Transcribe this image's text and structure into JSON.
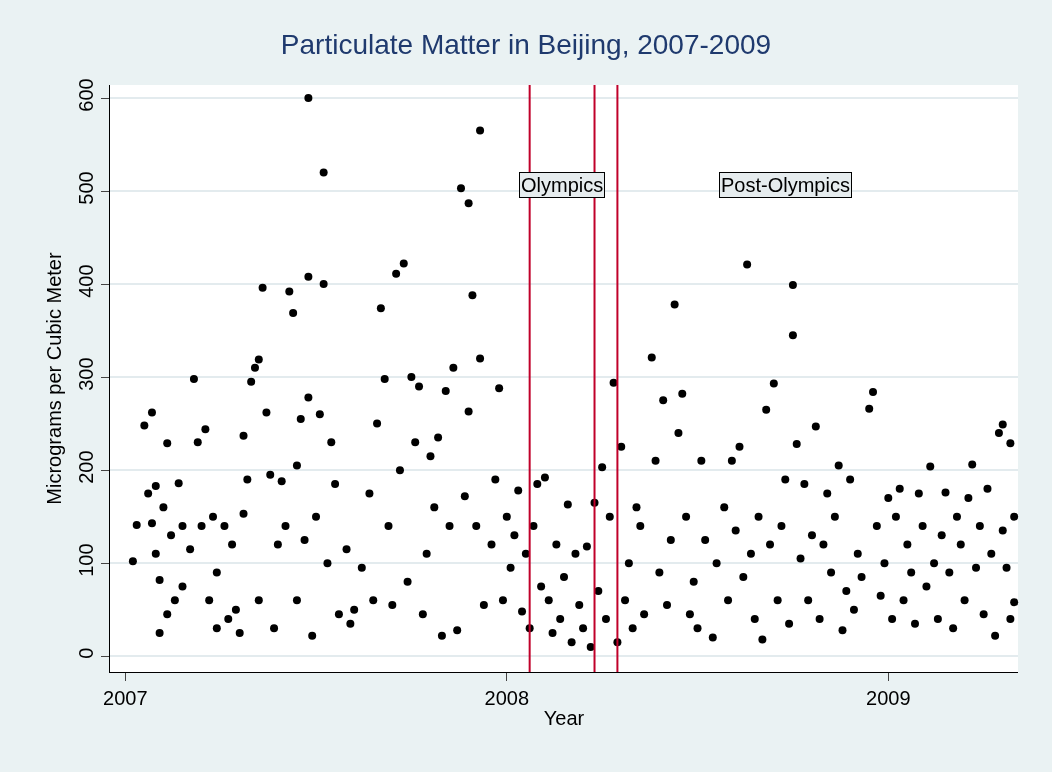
{
  "chart_data": {
    "type": "scatter",
    "title": "Particulate Matter in Beijing, 2007-2009",
    "xlabel": "Year",
    "ylabel": "Micrograms per Cubic Meter",
    "x": [
      2007.02,
      2007.03,
      2007.05,
      2007.06,
      2007.07,
      2007.07,
      2007.08,
      2007.08,
      2007.09,
      2007.09,
      2007.1,
      2007.11,
      2007.11,
      2007.12,
      2007.13,
      2007.14,
      2007.15,
      2007.15,
      2007.17,
      2007.18,
      2007.19,
      2007.2,
      2007.21,
      2007.22,
      2007.23,
      2007.24,
      2007.24,
      2007.26,
      2007.27,
      2007.28,
      2007.29,
      2007.3,
      2007.31,
      2007.31,
      2007.32,
      2007.33,
      2007.34,
      2007.35,
      2007.35,
      2007.36,
      2007.37,
      2007.38,
      2007.39,
      2007.4,
      2007.41,
      2007.42,
      2007.43,
      2007.44,
      2007.45,
      2007.45,
      2007.46,
      2007.47,
      2007.48,
      2007.48,
      2007.48,
      2007.49,
      2007.5,
      2007.51,
      2007.52,
      2007.52,
      2007.53,
      2007.54,
      2007.55,
      2007.56,
      2007.58,
      2007.59,
      2007.6,
      2007.62,
      2007.64,
      2007.65,
      2007.66,
      2007.67,
      2007.68,
      2007.69,
      2007.7,
      2007.71,
      2007.72,
      2007.73,
      2007.74,
      2007.75,
      2007.76,
      2007.77,
      2007.78,
      2007.79,
      2007.8,
      2007.81,
      2007.82,
      2007.83,
      2007.84,
      2007.85,
      2007.86,
      2007.87,
      2007.88,
      2007.89,
      2007.9,
      2007.9,
      2007.91,
      2007.92,
      2007.93,
      2007.93,
      2007.94,
      2007.96,
      2007.97,
      2007.98,
      2007.99,
      2008.0,
      2008.01,
      2008.02,
      2008.03,
      2008.04,
      2008.05,
      2008.06,
      2008.07,
      2008.08,
      2008.09,
      2008.1,
      2008.11,
      2008.12,
      2008.13,
      2008.14,
      2008.15,
      2008.16,
      2008.17,
      2008.18,
      2008.19,
      2008.2,
      2008.21,
      2008.22,
      2008.23,
      2008.24,
      2008.25,
      2008.26,
      2008.27,
      2008.28,
      2008.29,
      2008.3,
      2008.31,
      2008.32,
      2008.33,
      2008.34,
      2008.35,
      2008.36,
      2008.38,
      2008.39,
      2008.4,
      2008.41,
      2008.42,
      2008.43,
      2008.44,
      2008.45,
      2008.46,
      2008.47,
      2008.48,
      2008.49,
      2008.5,
      2008.51,
      2008.52,
      2008.54,
      2008.55,
      2008.57,
      2008.58,
      2008.59,
      2008.6,
      2008.61,
      2008.62,
      2008.63,
      2008.64,
      2008.65,
      2008.66,
      2008.67,
      2008.68,
      2008.69,
      2008.7,
      2008.71,
      2008.72,
      2008.73,
      2008.74,
      2008.75,
      2008.75,
      2008.76,
      2008.77,
      2008.78,
      2008.79,
      2008.8,
      2008.81,
      2008.82,
      2008.83,
      2008.84,
      2008.85,
      2008.86,
      2008.87,
      2008.88,
      2008.89,
      2008.9,
      2008.91,
      2008.92,
      2008.93,
      2008.95,
      2008.96,
      2008.97,
      2008.98,
      2008.99,
      2009.0,
      2009.01,
      2009.02,
      2009.03,
      2009.04,
      2009.05,
      2009.06,
      2009.07,
      2009.08,
      2009.09,
      2009.1,
      2009.11,
      2009.12,
      2009.13,
      2009.14,
      2009.15,
      2009.16,
      2009.17,
      2009.18,
      2009.19,
      2009.2,
      2009.21,
      2009.22,
      2009.23,
      2009.24,
      2009.25,
      2009.26,
      2009.27,
      2009.28,
      2009.29,
      2009.3,
      2009.3,
      2009.31,
      2009.32,
      2009.32,
      2009.33,
      2009.33
    ],
    "values": [
      102,
      141,
      248,
      175,
      262,
      143,
      183,
      110,
      25,
      82,
      160,
      229,
      45,
      130,
      60,
      186,
      75,
      140,
      115,
      298,
      230,
      140,
      244,
      60,
      150,
      30,
      90,
      140,
      40,
      120,
      50,
      25,
      153,
      237,
      190,
      295,
      310,
      319,
      60,
      396,
      262,
      195,
      30,
      120,
      188,
      140,
      392,
      369,
      60,
      205,
      255,
      125,
      600,
      408,
      278,
      22,
      150,
      260,
      400,
      520,
      100,
      230,
      185,
      45,
      115,
      35,
      50,
      95,
      175,
      60,
      250,
      374,
      298,
      140,
      55,
      411,
      200,
      422,
      80,
      300,
      230,
      290,
      45,
      110,
      215,
      160,
      235,
      22,
      285,
      140,
      310,
      28,
      503,
      172,
      487,
      263,
      388,
      140,
      565,
      320,
      55,
      120,
      190,
      288,
      60,
      150,
      95,
      130,
      178,
      48,
      110,
      30,
      140,
      185,
      75,
      192,
      60,
      25,
      120,
      40,
      85,
      163,
      15,
      110,
      55,
      30,
      118,
      10,
      165,
      70,
      203,
      40,
      150,
      294,
      15,
      225,
      60,
      100,
      30,
      160,
      140,
      45,
      321,
      210,
      90,
      275,
      55,
      125,
      378,
      240,
      282,
      150,
      45,
      80,
      30,
      210,
      125,
      20,
      100,
      160,
      60,
      210,
      135,
      225,
      85,
      421,
      110,
      40,
      150,
      18,
      265,
      120,
      293,
      60,
      140,
      190,
      35,
      399,
      345,
      228,
      105,
      185,
      60,
      130,
      247,
      40,
      120,
      175,
      90,
      150,
      205,
      28,
      70,
      190,
      50,
      110,
      85,
      266,
      284,
      140,
      65,
      100,
      170,
      40,
      150,
      180,
      60,
      120,
      90,
      35,
      175,
      140,
      75,
      204,
      100,
      40,
      130,
      176,
      90,
      30,
      150,
      120,
      60,
      170,
      206,
      95,
      140,
      45,
      180,
      110,
      22,
      240,
      249,
      135,
      95,
      229,
      40,
      150,
      58
    ],
    "color": "#000000",
    "marker": "circle",
    "xlim": [
      2006.96,
      2009.34
    ],
    "xticks": [
      2007,
      2008,
      2009
    ],
    "ylim": [
      -17,
      614
    ],
    "yticks": [
      0,
      100,
      200,
      300,
      400,
      500,
      600
    ],
    "grid": "y",
    "ref_lines": [
      {
        "axis": "x",
        "value": 2008.06,
        "color": "#c0002a"
      },
      {
        "axis": "x",
        "value": 2008.23,
        "color": "#c0002a"
      },
      {
        "axis": "x",
        "value": 2008.29,
        "color": "#c0002a"
      }
    ],
    "annotations": [
      "Olympics",
      "Post-Olympics"
    ]
  }
}
